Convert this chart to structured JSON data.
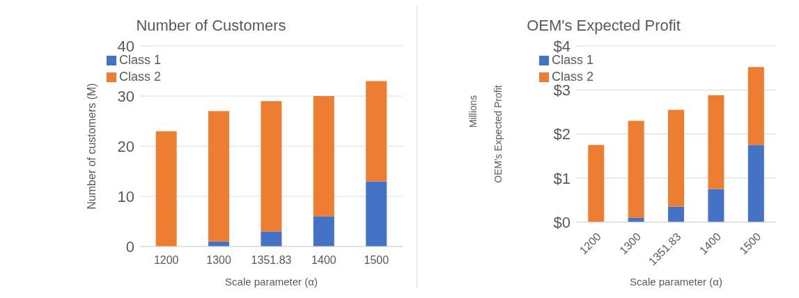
{
  "chart_data": [
    {
      "type": "bar",
      "title": "Number of Customers",
      "xlabel": "Scale parameter (α)",
      "ylabel": "Number of customers (M)",
      "categories": [
        "1200",
        "1300",
        "1351.83",
        "1400",
        "1500"
      ],
      "stacked": true,
      "series": [
        {
          "name": "Class 1",
          "color": "#4472c4",
          "values": [
            0,
            1,
            3,
            6,
            13
          ]
        },
        {
          "name": "Class 2",
          "color": "#ed7d31",
          "values": [
            23,
            26,
            26,
            24,
            20
          ]
        }
      ],
      "ylim": [
        0,
        40
      ],
      "yticks": [
        0,
        10,
        20,
        30,
        40
      ],
      "grid": "y",
      "legend": "top left"
    },
    {
      "type": "bar",
      "title": "OEM's Expected Profit",
      "xlabel": "Scale parameter (α)",
      "ylabel": "OEM's Expected Profit",
      "annotations": [
        "Millions"
      ],
      "categories": [
        "1200",
        "1300",
        "1351.83",
        "1400",
        "1500"
      ],
      "stacked": true,
      "series": [
        {
          "name": "Class 1",
          "color": "#4472c4",
          "values": [
            0,
            0.1,
            0.35,
            0.75,
            1.75
          ]
        },
        {
          "name": "Class 2",
          "color": "#ed7d31",
          "values": [
            1.75,
            2.2,
            2.2,
            2.13,
            1.77
          ]
        }
      ],
      "ylim": [
        0,
        4
      ],
      "yticks": [
        {
          "value": 0,
          "label": "$0"
        },
        {
          "value": 1,
          "label": "$1"
        },
        {
          "value": 2,
          "label": "$2"
        },
        {
          "value": 3,
          "label": "$3"
        },
        {
          "value": 4,
          "label": "$4"
        }
      ],
      "grid": "y",
      "legend": "top left"
    }
  ]
}
